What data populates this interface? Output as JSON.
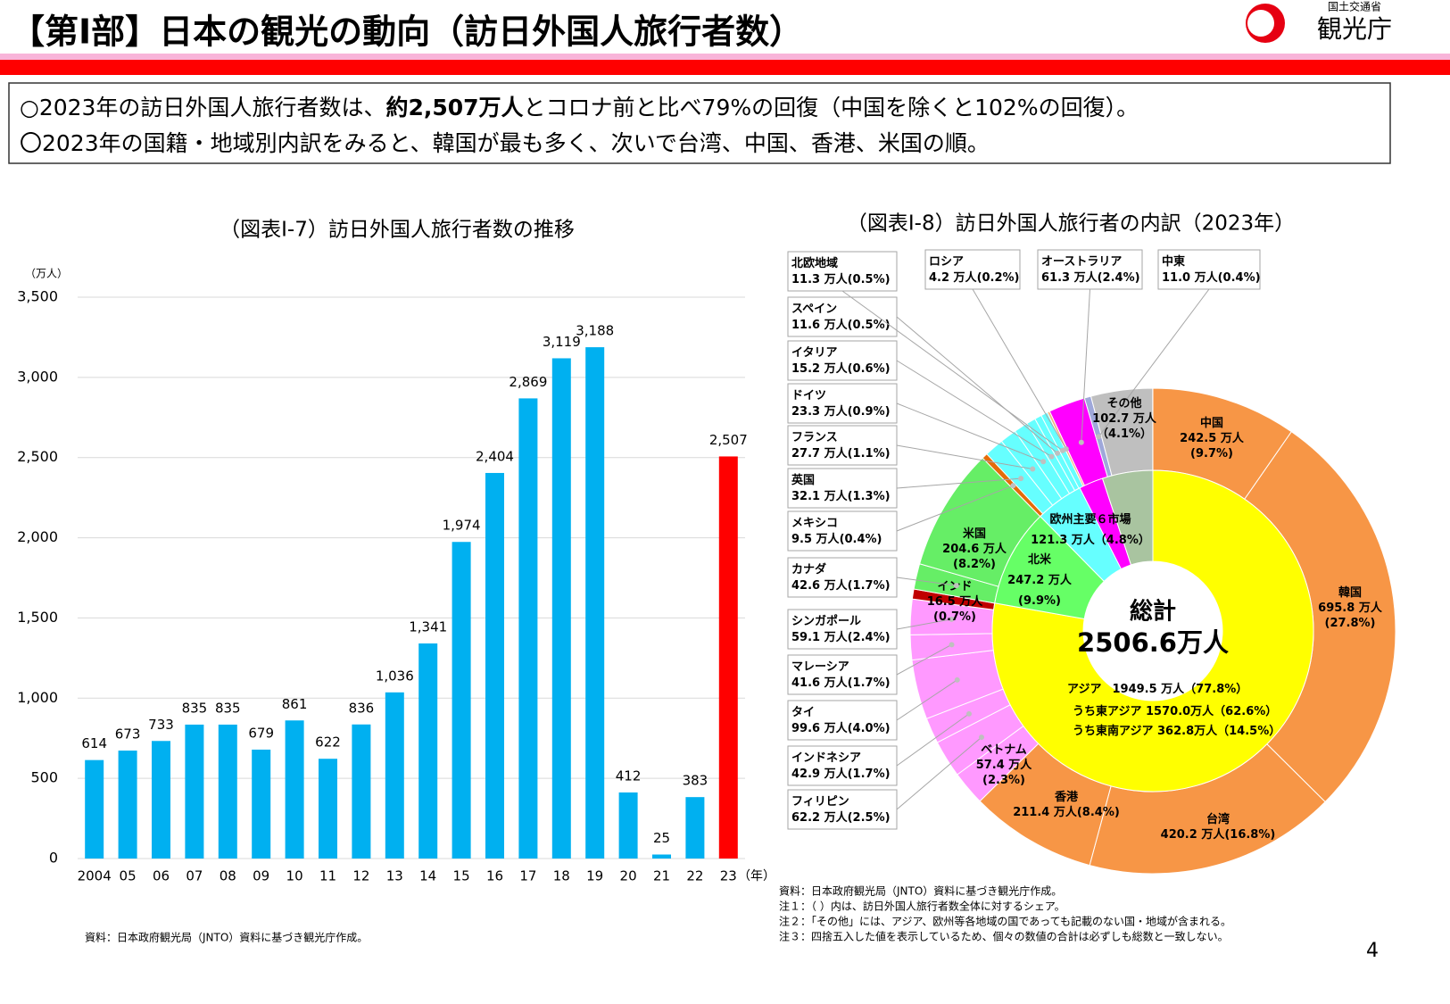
{
  "header": {
    "title": "【第Ⅰ部】日本の観光の動向（訪日外国人旅行者数）",
    "logo_org": "国土交通省",
    "logo_name": "観光庁"
  },
  "summary": {
    "lines": [
      [
        "○2023年の訪日外国人旅行者数は、",
        "約2,507万人",
        "とコロナ前と比べ79%の回復（中国を除くと102%の回復）。"
      ],
      [
        "〇2023年の国籍・地域別内訳をみると、韓国が最も多く、次いで台湾、中国、香港、米国の順。"
      ]
    ]
  },
  "chart_data": [
    {
      "type": "bar",
      "title": "（図表Ⅰ-7）訪日外国人旅行者数の推移",
      "y_unit": "（万人）",
      "x_unit": "（年）",
      "categories": [
        "2004",
        "05",
        "06",
        "07",
        "08",
        "09",
        "10",
        "11",
        "12",
        "13",
        "14",
        "15",
        "16",
        "17",
        "18",
        "19",
        "20",
        "21",
        "22",
        "23"
      ],
      "values": [
        614,
        673,
        733,
        835,
        835,
        679,
        861,
        622,
        836,
        1036,
        1341,
        1974,
        2404,
        2869,
        3119,
        3188,
        412,
        25,
        383,
        2507
      ],
      "value_labels": [
        "614",
        "673",
        "733",
        "835",
        "835",
        "679",
        "861",
        "622",
        "836",
        "1,036",
        "1,341",
        "1,974",
        "2,404",
        "2,869",
        "3,119",
        "3,188",
        "412",
        "25",
        "383",
        "2,507"
      ],
      "colors": [
        "#00b0f0",
        "#00b0f0",
        "#00b0f0",
        "#00b0f0",
        "#00b0f0",
        "#00b0f0",
        "#00b0f0",
        "#00b0f0",
        "#00b0f0",
        "#00b0f0",
        "#00b0f0",
        "#00b0f0",
        "#00b0f0",
        "#00b0f0",
        "#00b0f0",
        "#00b0f0",
        "#00b0f0",
        "#00b0f0",
        "#00b0f0",
        "#ff0000"
      ],
      "ylim": [
        0,
        3500
      ],
      "yticks": [
        0,
        500,
        {
          "value": 1000,
          "label": "1,000"
        },
        {
          "value": 1500,
          "label": "1,500"
        },
        {
          "value": 2000,
          "label": "2,000"
        },
        {
          "value": 2500,
          "label": "2,500"
        },
        {
          "value": 3000,
          "label": "3,000"
        },
        {
          "value": 3500,
          "label": "3,500"
        }
      ],
      "grid": true
    },
    {
      "type": "donut",
      "title": "（図表Ⅰ-8）訪日外国人旅行者の内訳（2023年）",
      "total_label": "総計",
      "total": 2506.6,
      "total_text": "2506.6万人",
      "outer": [
        {
          "name": "中国",
          "value": 242.5,
          "value_label": "242.5 万人",
          "share_label": "(9.7%)",
          "color": "#f79646"
        },
        {
          "name": "韓国",
          "value": 695.8,
          "value_label": "695.8 万人",
          "share_label": "(27.8%)",
          "color": "#f79646"
        },
        {
          "name": "台湾",
          "value": 420.2,
          "value_label": "420.2 万人",
          "share_label": "(16.8%)",
          "color": "#f79646"
        },
        {
          "name": "香港",
          "value": 211.4,
          "value_label": "211.4 万人",
          "share_label": "(8.4%)",
          "color": "#f79646"
        },
        {
          "name": "ベトナム",
          "value": 57.4,
          "value_label": "57.4 万人",
          "share_label": "(2.3%)",
          "color": "#ff99ff"
        },
        {
          "name": "フィリピン",
          "value": 62.2,
          "value_label": "62.2 万人",
          "share_label": "(2.5%)",
          "color": "#ff99ff"
        },
        {
          "name": "インドネシア",
          "value": 42.9,
          "value_label": "42.9 万人",
          "share_label": "(1.7%)",
          "color": "#ff99ff"
        },
        {
          "name": "タイ",
          "value": 99.6,
          "value_label": "99.6 万人",
          "share_label": "(4.0%)",
          "color": "#ff99ff"
        },
        {
          "name": "マレーシア",
          "value": 41.6,
          "value_label": "41.6 万人",
          "share_label": "(1.7%)",
          "color": "#ff99ff"
        },
        {
          "name": "シンガポール",
          "value": 59.1,
          "value_label": "59.1 万人",
          "share_label": "(2.4%)",
          "color": "#ff99ff"
        },
        {
          "name": "インド",
          "value": 16.5,
          "value_label": "16.5 万人",
          "share_label": "(0.7%)",
          "color": "#c00000"
        },
        {
          "name": "カナダ",
          "value": 42.6,
          "value_label": "42.6 万人",
          "share_label": "(1.7%)",
          "color": "#66ee66"
        },
        {
          "name": "米国",
          "value": 204.6,
          "value_label": "204.6 万人",
          "share_label": "(8.2%)",
          "color": "#66ee66"
        },
        {
          "name": "メキシコ",
          "value": 9.5,
          "value_label": "9.5 万人",
          "share_label": "(0.4%)",
          "color": "#e46c0a"
        },
        {
          "name": "英国",
          "value": 32.1,
          "value_label": "32.1 万人",
          "share_label": "(1.3%)",
          "color": "#66ffff"
        },
        {
          "name": "フランス",
          "value": 27.7,
          "value_label": "27.7 万人",
          "share_label": "(1.1%)",
          "color": "#66ffff"
        },
        {
          "name": "ドイツ",
          "value": 23.3,
          "value_label": "23.3 万人",
          "share_label": "(0.9%)",
          "color": "#66ffff"
        },
        {
          "name": "イタリア",
          "value": 15.2,
          "value_label": "15.2 万人",
          "share_label": "(0.6%)",
          "color": "#66ffff"
        },
        {
          "name": "スペイン",
          "value": 11.6,
          "value_label": "11.6 万人",
          "share_label": "(0.5%)",
          "color": "#66ffff"
        },
        {
          "name": "北欧地域",
          "value": 11.3,
          "value_label": "11.3 万人",
          "share_label": "(0.5%)",
          "color": "#66ffff"
        },
        {
          "name": "ロシア",
          "value": 4.2,
          "value_label": "4.2 万人",
          "share_label": "(0.2%)",
          "color": "#f4b183"
        },
        {
          "name": "オーストラリア",
          "value": 61.3,
          "value_label": "61.3 万人",
          "share_label": "(2.4%)",
          "color": "#ff00ff"
        },
        {
          "name": "中東",
          "value": 11.0,
          "value_label": "11.0 万人",
          "share_label": "(0.4%)",
          "color": "#9fa8da"
        },
        {
          "name": "その他",
          "value": 102.7,
          "value_label": "102.7 万人",
          "share_label": "（4.1%）",
          "color": "#bfbfbf"
        }
      ],
      "inner": [
        {
          "name": "アジア",
          "value": 1949.5,
          "value_label": "1949.5 万人",
          "share_label": "（77.8%）",
          "color": "#ffff00",
          "notes": [
            "うち東アジア 1570.0万人（62.6%）",
            "うち東南アジア 362.8万人（14.5%）"
          ]
        },
        {
          "name": "北米",
          "value": 247.2,
          "value_label": "247.2 万人",
          "share_label": "(9.9%)",
          "color": "#66ff66"
        },
        {
          "name": "欧州主要６市場",
          "value": 121.3,
          "value_label": "121.3 万人",
          "share_label": "（4.8%）",
          "color": "#66ffff"
        },
        {
          "name": null,
          "value": 61.3,
          "color": "#ff00ff"
        },
        {
          "name": null,
          "value": 127.3,
          "color": "#a9c4a0"
        }
      ]
    }
  ],
  "sources": {
    "left": "資料：日本政府観光局（JNTO）資料に基づき観光庁作成。",
    "right": [
      "資料：日本政府観光局（JNTO）資料に基づき観光庁作成。",
      "注１：（ ）内は、訪日外国人旅行者数全体に対するシェア。",
      "注２：「その他」には、アジア、欧州等各地域の国であっても記載のない国・地域が含まれる。",
      "注３：四捨五入した値を表示しているため、個々の数値の合計は必ずしも総数と一致しない。"
    ]
  },
  "page_number": "4"
}
